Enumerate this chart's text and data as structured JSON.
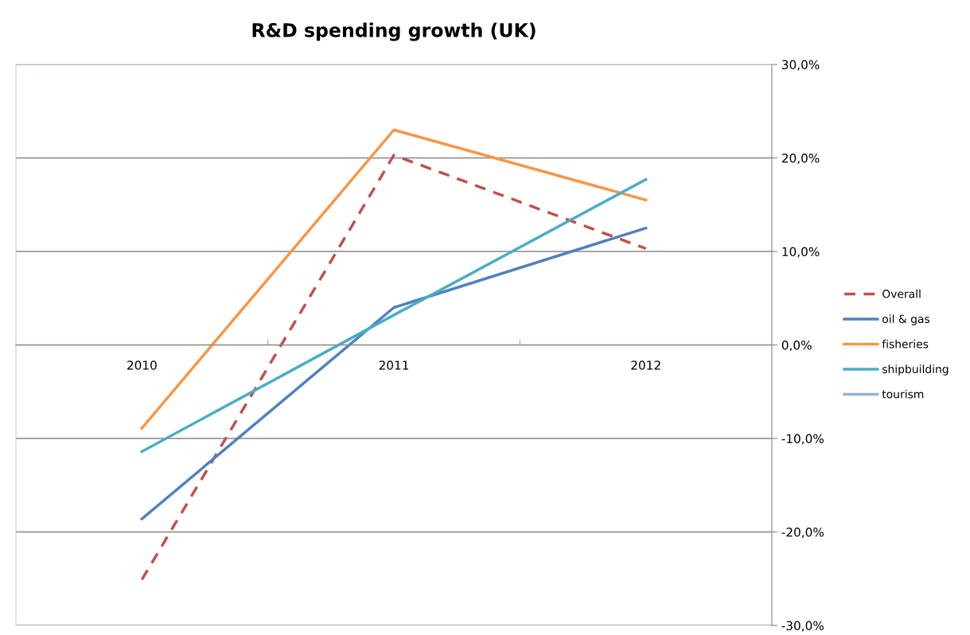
{
  "chart_data": {
    "type": "line",
    "title": "R&D spending growth (UK)",
    "categories": [
      "2010",
      "2011",
      "2012"
    ],
    "series": [
      {
        "name": "Overall",
        "color": "#c0504d",
        "line_style": "dashed",
        "values": [
          -25.1,
          20.3,
          10.3
        ]
      },
      {
        "name": "oil & gas",
        "color": "#4f81bd",
        "values": [
          -18.6,
          4.0,
          12.5
        ]
      },
      {
        "name": "fisheries",
        "color": "#f79646",
        "values": [
          -8.9,
          23.0,
          15.5
        ]
      },
      {
        "name": "shipbuilding",
        "color": "#4bacc6",
        "values": [
          -11.4,
          3.2,
          17.7
        ]
      },
      {
        "name": "tourism",
        "color": "#95b3d7",
        "values": [
          null,
          null,
          null
        ]
      }
    ],
    "ylim": [
      -30,
      30
    ],
    "yticks": [
      {
        "value": -30,
        "label": "-30,0%"
      },
      {
        "value": -20,
        "label": "-20,0%"
      },
      {
        "value": -10,
        "label": "-10,0%"
      },
      {
        "value": 0,
        "label": "0,0%"
      },
      {
        "value": 10,
        "label": "10,0%"
      },
      {
        "value": 20,
        "label": "20,0%"
      },
      {
        "value": 30,
        "label": "30,0%"
      }
    ],
    "grid": "y",
    "legend": "right",
    "line_style": "solid",
    "marker": "none"
  }
}
